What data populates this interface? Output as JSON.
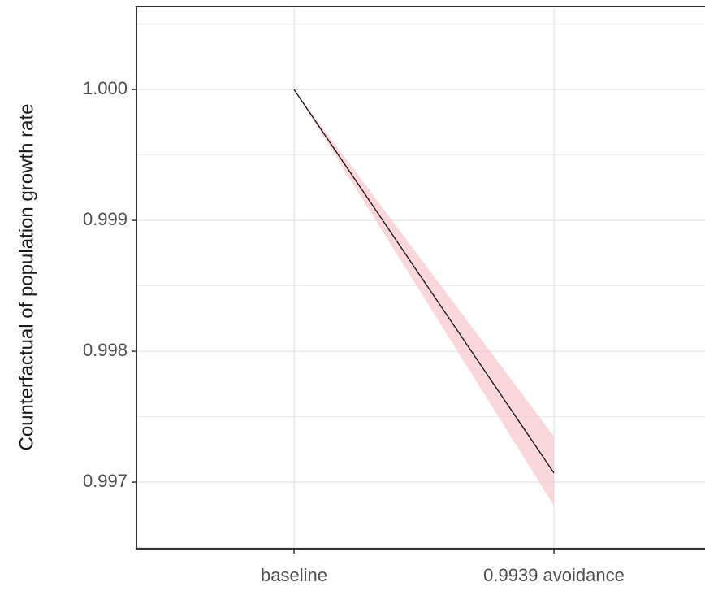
{
  "chart_data": {
    "type": "line",
    "y_label": "Counterfactual of population growth rate",
    "categories": [
      "baseline",
      "0.9939 avoidance"
    ],
    "values": [
      1.0,
      0.99707
    ],
    "lower": [
      1.0,
      0.99682
    ],
    "upper": [
      1.0,
      0.99735
    ],
    "color": "#000000",
    "ribbon_color": "#f8c9ce",
    "ylim": [
      0.996491,
      1.000634
    ],
    "yticks": [
      {
        "value": 1,
        "label": "1.000"
      },
      0.999,
      0.998,
      0.997
    ],
    "y_minor_ticks": [
      1.0005,
      0.9995,
      0.9985,
      0.9975,
      0.9965
    ],
    "grid": true
  }
}
